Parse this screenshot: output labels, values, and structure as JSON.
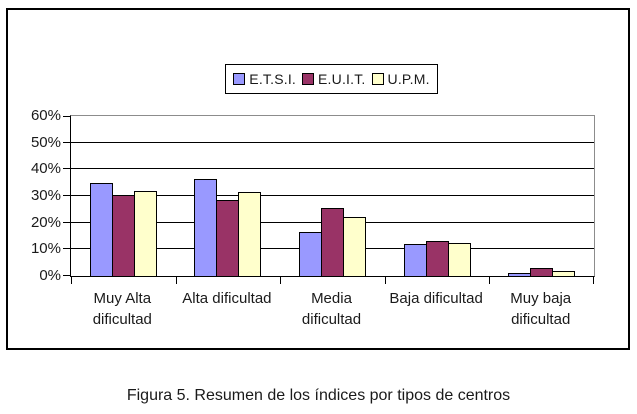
{
  "figure": {
    "caption": "Figura 5. Resumen de los índices por tipos de centros"
  },
  "chart_data": {
    "type": "bar",
    "title": "",
    "categories": [
      "Muy Alta dificultad",
      "Alta dificultad",
      "Media dificultad",
      "Baja dificultad",
      "Muy baja dificultad"
    ],
    "category_display_lines": [
      [
        "Muy Alta",
        "dificultad"
      ],
      [
        "Alta dificultad"
      ],
      [
        "Media",
        "dificultad"
      ],
      [
        "Baja dificultad"
      ],
      [
        "Muy baja",
        "dificultad"
      ]
    ],
    "series": [
      {
        "name": "E.T.S.I.",
        "color": "#9999FF",
        "values": [
          35,
          36.5,
          16.5,
          12,
          1
        ]
      },
      {
        "name": "E.U.I.T.",
        "color": "#993366",
        "values": [
          30.5,
          28.5,
          25.5,
          13,
          3
        ]
      },
      {
        "name": "U.P.M.",
        "color": "#FFFFCC",
        "values": [
          32,
          31.5,
          22,
          12.5,
          2
        ]
      }
    ],
    "xlabel": "",
    "ylabel": "",
    "ylim": [
      0,
      60
    ],
    "ytick_step": 10,
    "ytick_labels": [
      "0%",
      "10%",
      "20%",
      "30%",
      "40%",
      "50%",
      "60%"
    ],
    "grid": true,
    "legend_position": "top-center",
    "colors": {
      "bar_border": "#000000",
      "gridline": "#000000",
      "plot_border": "#8c8c8c",
      "axis": "#000000",
      "text": "#1a1a1a",
      "background": "#ffffff"
    }
  }
}
